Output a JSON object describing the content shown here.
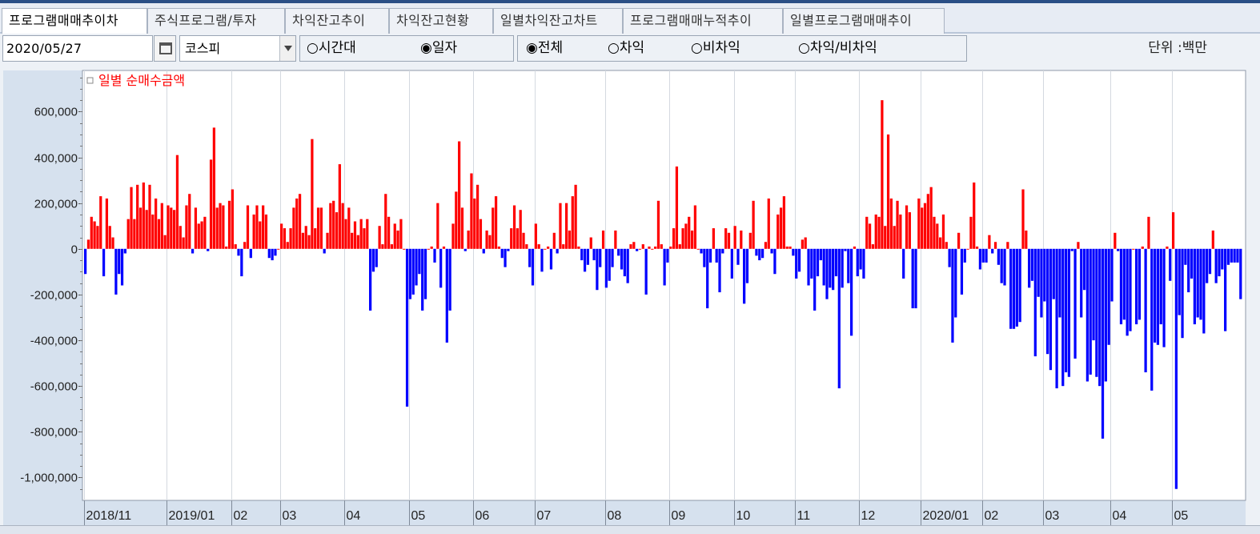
{
  "tabs": [
    {
      "label": "프로그램매매추이차",
      "active": true
    },
    {
      "label": "주식프로그램/투자"
    },
    {
      "label": "차익잔고추이"
    },
    {
      "label": "차익잔고현황"
    },
    {
      "label": "일별차익잔고차트"
    },
    {
      "label": "프로그램매매누적추이"
    },
    {
      "label": "일별프로그램매매추이"
    }
  ],
  "toolbar": {
    "date": "2020/05/27",
    "market": "코스피",
    "period_options": [
      {
        "label": "○시간대",
        "selected": false
      },
      {
        "label": "◉일자",
        "selected": true
      }
    ],
    "type_options": [
      {
        "label": "◉전체",
        "selected": true
      },
      {
        "label": "○차익",
        "selected": false
      },
      {
        "label": "○비차익",
        "selected": false
      },
      {
        "label": "○차익/비차익",
        "selected": false
      }
    ],
    "unit": "단위 :백만"
  },
  "colors": {
    "positive": "#ff0000",
    "negative": "#0000ff",
    "legend_text": "#ff0000",
    "axis_bg": "#d6e1ee"
  },
  "chart_data": {
    "type": "bar",
    "legend": "일별 순매수금액",
    "ylim": [
      -1100000,
      780000
    ],
    "yticks": [
      600000,
      400000,
      200000,
      0,
      -200000,
      -400000,
      -600000,
      -800000,
      -1000000
    ],
    "ytick_labels": [
      "600,000",
      "400,000",
      "200,000",
      "0",
      "-200,000",
      "-400,000",
      "-600,000",
      "-800,000",
      "-1,000,000"
    ],
    "xtick_labels": [
      "2018/11",
      "2019/01",
      "02",
      "03",
      "04",
      "05",
      "06",
      "07",
      "08",
      "09",
      "10",
      "11",
      "12",
      "2020/01",
      "02",
      "03",
      "04",
      "05"
    ],
    "xtick_index": [
      0,
      27,
      48,
      64,
      85,
      106,
      127,
      147,
      170,
      191,
      212,
      232,
      253,
      273,
      293,
      313,
      335,
      355
    ],
    "values": [
      -110000,
      40000,
      140000,
      120000,
      100000,
      230000,
      -120000,
      220000,
      100000,
      50000,
      -200000,
      -110000,
      -160000,
      -20000,
      130000,
      270000,
      130000,
      280000,
      180000,
      290000,
      170000,
      280000,
      150000,
      220000,
      130000,
      200000,
      60000,
      190000,
      180000,
      170000,
      410000,
      100000,
      50000,
      190000,
      240000,
      -20000,
      180000,
      110000,
      120000,
      140000,
      -10000,
      390000,
      530000,
      180000,
      200000,
      190000,
      10000,
      210000,
      260000,
      20000,
      -30000,
      -120000,
      30000,
      190000,
      -40000,
      150000,
      190000,
      120000,
      190000,
      150000,
      -40000,
      -50000,
      -30000,
      0,
      110000,
      90000,
      30000,
      90000,
      180000,
      220000,
      240000,
      70000,
      100000,
      60000,
      480000,
      90000,
      180000,
      180000,
      -20000,
      70000,
      200000,
      210000,
      160000,
      370000,
      200000,
      130000,
      180000,
      70000,
      120000,
      60000,
      130000,
      90000,
      130000,
      -270000,
      -100000,
      -80000,
      100000,
      20000,
      240000,
      140000,
      20000,
      110000,
      80000,
      130000,
      0,
      -690000,
      -220000,
      -200000,
      -160000,
      -110000,
      -270000,
      -220000,
      0,
      10000,
      -60000,
      200000,
      -170000,
      10000,
      -410000,
      -270000,
      110000,
      250000,
      470000,
      180000,
      -10000,
      80000,
      330000,
      220000,
      280000,
      130000,
      -20000,
      80000,
      60000,
      180000,
      230000,
      10000,
      -40000,
      -80000,
      -10000,
      90000,
      190000,
      90000,
      170000,
      70000,
      20000,
      -80000,
      -160000,
      110000,
      20000,
      -100000,
      0,
      10000,
      -90000,
      70000,
      -20000,
      200000,
      20000,
      200000,
      80000,
      230000,
      280000,
      10000,
      -50000,
      -100000,
      -70000,
      50000,
      -50000,
      -180000,
      -80000,
      80000,
      -170000,
      -140000,
      -80000,
      80000,
      -30000,
      -90000,
      -120000,
      -150000,
      20000,
      30000,
      -10000,
      0,
      20000,
      -200000,
      10000,
      0,
      10000,
      210000,
      20000,
      -160000,
      -60000,
      10000,
      90000,
      360000,
      20000,
      90000,
      110000,
      140000,
      80000,
      190000,
      0,
      -20000,
      -80000,
      -260000,
      -60000,
      90000,
      -60000,
      -190000,
      -20000,
      90000,
      70000,
      -130000,
      100000,
      -70000,
      80000,
      -240000,
      -150000,
      70000,
      210000,
      -30000,
      -50000,
      -40000,
      30000,
      220000,
      -20000,
      -110000,
      150000,
      180000,
      230000,
      10000,
      10000,
      -30000,
      -130000,
      -100000,
      40000,
      50000,
      -160000,
      -130000,
      -270000,
      -120000,
      -50000,
      -160000,
      -220000,
      -170000,
      -180000,
      -120000,
      -610000,
      -170000,
      -10000,
      -150000,
      -380000,
      10000,
      -120000,
      -90000,
      -130000,
      140000,
      110000,
      20000,
      150000,
      140000,
      650000,
      100000,
      500000,
      220000,
      100000,
      210000,
      150000,
      -130000,
      190000,
      160000,
      -260000,
      -260000,
      220000,
      180000,
      200000,
      240000,
      270000,
      140000,
      110000,
      50000,
      150000,
      30000,
      -80000,
      -410000,
      -300000,
      70000,
      -200000,
      -60000,
      0,
      140000,
      290000,
      10000,
      -90000,
      -60000,
      -60000,
      60000,
      -20000,
      30000,
      -70000,
      -150000,
      -160000,
      30000,
      -350000,
      -350000,
      -340000,
      -320000,
      260000,
      80000,
      -170000,
      -140000,
      -470000,
      -210000,
      -300000,
      -230000,
      -460000,
      -530000,
      -220000,
      -610000,
      -300000,
      -600000,
      -540000,
      -560000,
      -10000,
      -480000,
      30000,
      -300000,
      -180000,
      -580000,
      -550000,
      -400000,
      -560000,
      -600000,
      -830000,
      -580000,
      -420000,
      -230000,
      70000,
      -10000,
      -330000,
      -310000,
      -380000,
      -360000,
      0,
      -330000,
      -310000,
      10000,
      -540000,
      140000,
      -620000,
      -410000,
      -420000,
      -330000,
      -430000,
      10000,
      -140000,
      160000,
      -1050000,
      -290000,
      -390000,
      -70000,
      -190000,
      -130000,
      -330000,
      -300000,
      -310000,
      -370000,
      -150000,
      -110000,
      80000,
      -150000,
      -120000,
      -90000,
      -360000,
      -70000,
      -60000,
      -60000,
      -60000,
      -220000
    ]
  }
}
